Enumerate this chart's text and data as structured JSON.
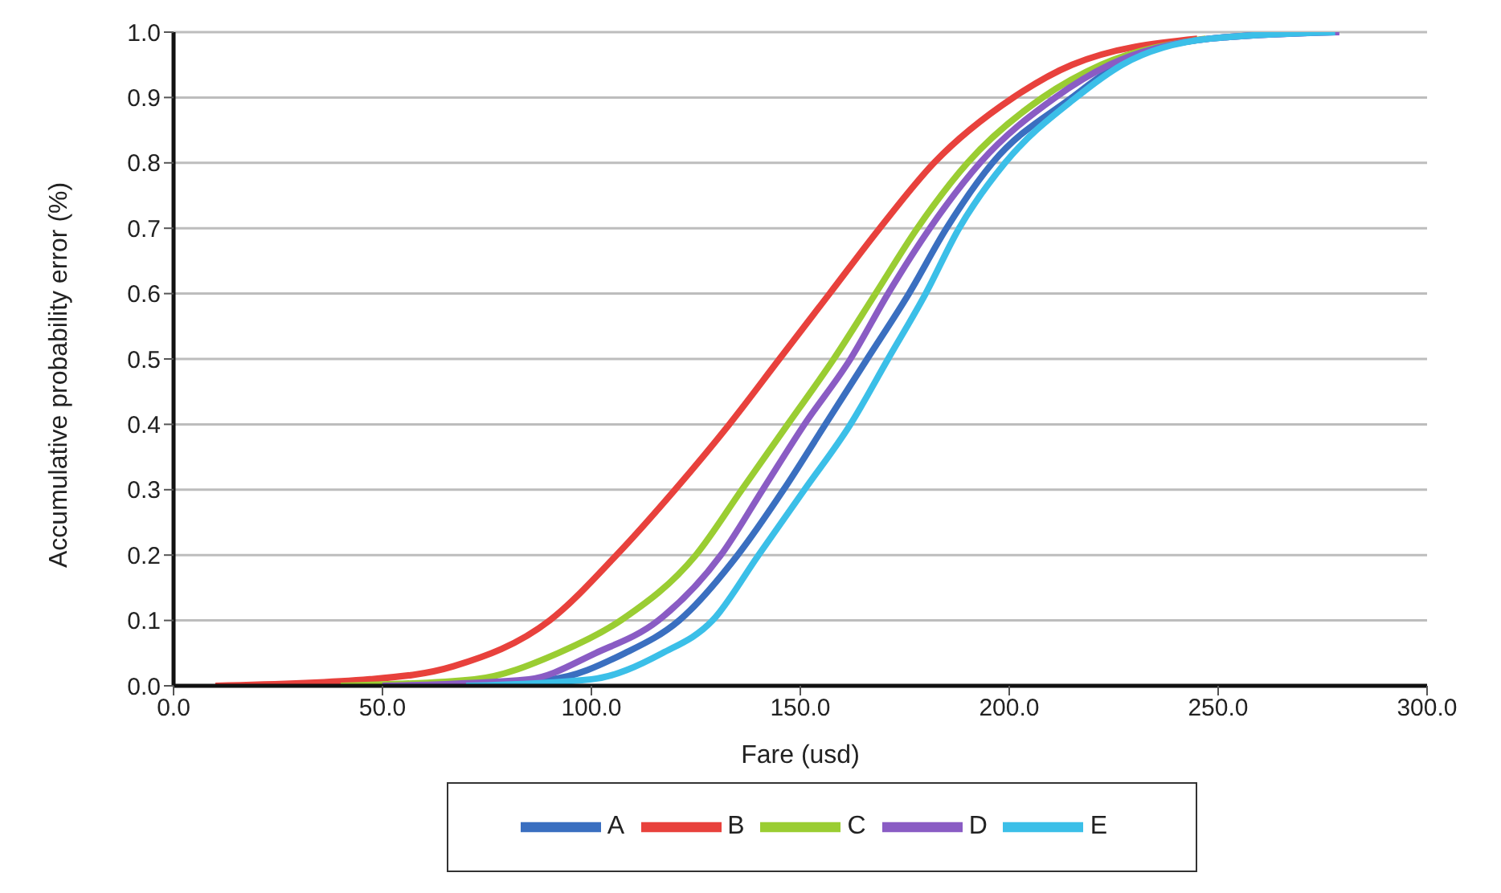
{
  "chart_data": {
    "type": "line",
    "xlabel": "Fare (usd)",
    "ylabel": "Accumulative probability error (%)",
    "xlim": [
      0,
      300
    ],
    "ylim": [
      0,
      1
    ],
    "xticks": [
      {
        "value": 0,
        "label": "0.0"
      },
      {
        "value": 50,
        "label": "50.0"
      },
      {
        "value": 100,
        "label": "100.0"
      },
      {
        "value": 150,
        "label": "150.0"
      },
      {
        "value": 200,
        "label": "200.0"
      },
      {
        "value": 250,
        "label": "250.0"
      },
      {
        "value": 300,
        "label": "300.0"
      }
    ],
    "yticks": [
      {
        "value": 0,
        "label": "0.0"
      },
      {
        "value": 0.1,
        "label": "0.1"
      },
      {
        "value": 0.2,
        "label": "0.2"
      },
      {
        "value": 0.3,
        "label": "0.3"
      },
      {
        "value": 0.4,
        "label": "0.4"
      },
      {
        "value": 0.5,
        "label": "0.5"
      },
      {
        "value": 0.6,
        "label": "0.6"
      },
      {
        "value": 0.7,
        "label": "0.7"
      },
      {
        "value": 0.8,
        "label": "0.8"
      },
      {
        "value": 0.9,
        "label": "0.9"
      },
      {
        "value": 1,
        "label": "1.0"
      }
    ],
    "grid": "y",
    "legend": "bottom",
    "marker": "none",
    "line_style": "solid",
    "series": [
      {
        "name": "A",
        "color": "#3a6fc0",
        "x": [
          50,
          90,
          108,
          121,
          135,
          146,
          156,
          166,
          176,
          185,
          196,
          215,
          226,
          248,
          278
        ],
        "values": [
          0,
          0.01,
          0.05,
          0.1,
          0.2,
          0.3,
          0.4,
          0.5,
          0.6,
          0.7,
          0.8,
          0.9,
          0.95,
          0.99,
          1
        ]
      },
      {
        "name": "B",
        "color": "#e8413c",
        "x": [
          10,
          47,
          67,
          90,
          106,
          120,
          133,
          145,
          157,
          169,
          182,
          201,
          215,
          245
        ],
        "values": [
          0,
          0.01,
          0.03,
          0.1,
          0.2,
          0.3,
          0.4,
          0.5,
          0.6,
          0.7,
          0.8,
          0.9,
          0.95,
          0.99
        ]
      },
      {
        "name": "C",
        "color": "#9acd32",
        "x": [
          40,
          72,
          92,
          107,
          125,
          136,
          147,
          158,
          168,
          178,
          190,
          208,
          222,
          247
        ],
        "values": [
          0,
          0.01,
          0.05,
          0.1,
          0.2,
          0.3,
          0.4,
          0.5,
          0.6,
          0.7,
          0.8,
          0.9,
          0.95,
          0.99
        ]
      },
      {
        "name": "D",
        "color": "#8a5cc4",
        "x": [
          50,
          85,
          101,
          116,
          131,
          141,
          151,
          162,
          171,
          181,
          193,
          211,
          224,
          248,
          279
        ],
        "values": [
          0,
          0.01,
          0.05,
          0.1,
          0.2,
          0.3,
          0.4,
          0.5,
          0.6,
          0.7,
          0.8,
          0.9,
          0.95,
          0.99,
          1
        ]
      },
      {
        "name": "E",
        "color": "#3bbfe8",
        "x": [
          70,
          100,
          117,
          129,
          140,
          151,
          162,
          171,
          180,
          188,
          199,
          216,
          227,
          248,
          278
        ],
        "values": [
          0,
          0.01,
          0.05,
          0.1,
          0.2,
          0.3,
          0.4,
          0.5,
          0.6,
          0.7,
          0.8,
          0.9,
          0.95,
          0.99,
          1
        ]
      }
    ]
  }
}
